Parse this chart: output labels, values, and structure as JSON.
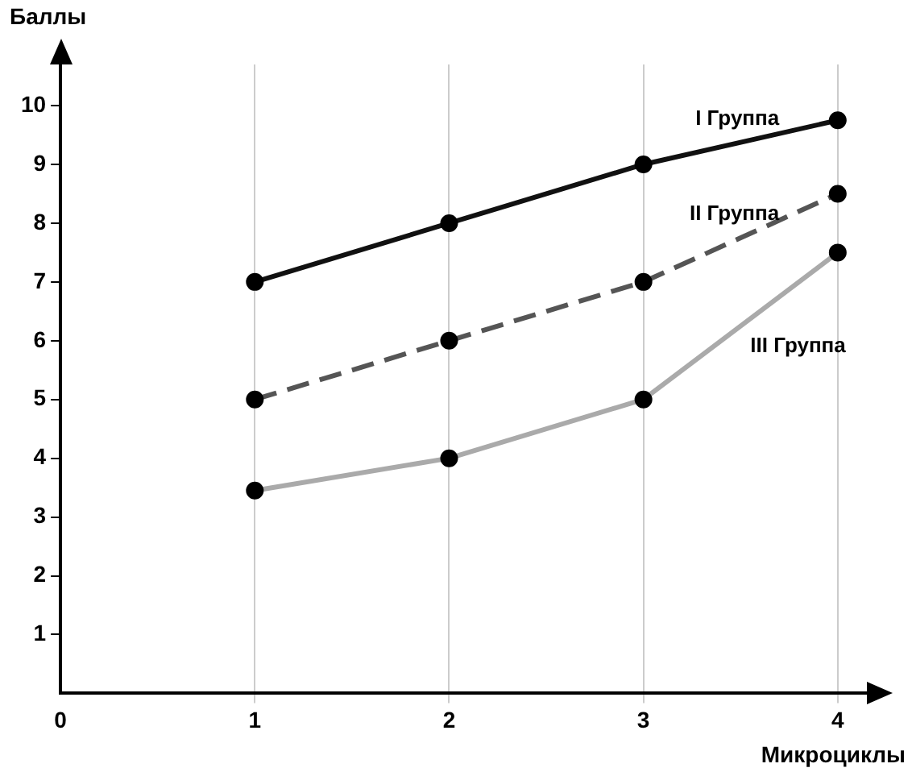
{
  "chart_data": {
    "type": "line",
    "xlabel": "Микроциклы",
    "ylabel": "Баллы",
    "x": [
      1,
      2,
      3,
      4
    ],
    "xlim": [
      0,
      4.15
    ],
    "xticks": [
      0,
      1,
      2,
      3,
      4
    ],
    "ylim": [
      0,
      10.7
    ],
    "yticks": [
      1,
      2,
      3,
      4,
      5,
      6,
      7,
      8,
      9,
      10
    ],
    "grid": "x",
    "legend": false,
    "marker": "circle",
    "series": [
      {
        "name": "I Группа",
        "color": "#111111",
        "line_style": "solid",
        "values": [
          7,
          8,
          9,
          9.75
        ]
      },
      {
        "name": "II Группа",
        "color": "#555555",
        "line_style": "dashed",
        "values": [
          5,
          6,
          7,
          8.5
        ]
      },
      {
        "name": "III Группа",
        "color": "#aaaaaa",
        "line_style": "solid",
        "values": [
          3.45,
          4,
          5,
          7.5
        ]
      }
    ]
  }
}
